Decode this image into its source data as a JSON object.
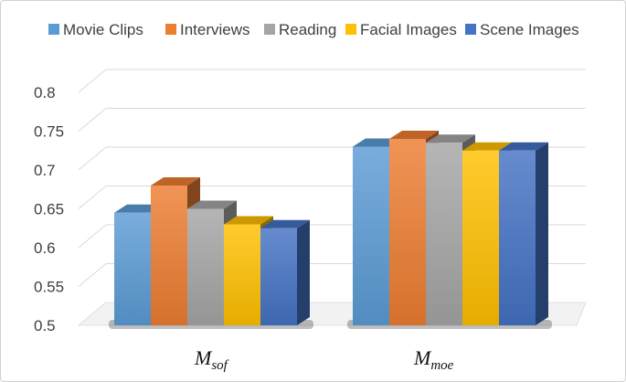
{
  "chart_data": {
    "type": "bar",
    "style": "3d-clustered-column",
    "categories": [
      {
        "main": "M",
        "sub": "sof"
      },
      {
        "main": "M",
        "sub": "moe"
      }
    ],
    "series": [
      {
        "name": "Movie Clips",
        "values": [
          0.645,
          0.73
        ],
        "color": "#5b9bd5"
      },
      {
        "name": "Interviews",
        "values": [
          0.68,
          0.74
        ],
        "color": "#ed7d31"
      },
      {
        "name": "Reading",
        "values": [
          0.65,
          0.735
        ],
        "color": "#a5a5a5"
      },
      {
        "name": "Facial Images",
        "values": [
          0.63,
          0.725
        ],
        "color": "#ffc000"
      },
      {
        "name": "Scene Images",
        "values": [
          0.625,
          0.725
        ],
        "color": "#4472c4"
      }
    ],
    "yticks": [
      "0.5",
      "0.55",
      "0.6",
      "0.65",
      "0.7",
      "0.75",
      "0.8"
    ],
    "ylim": [
      0.5,
      0.8
    ],
    "grid": true,
    "legend_position": "top"
  }
}
